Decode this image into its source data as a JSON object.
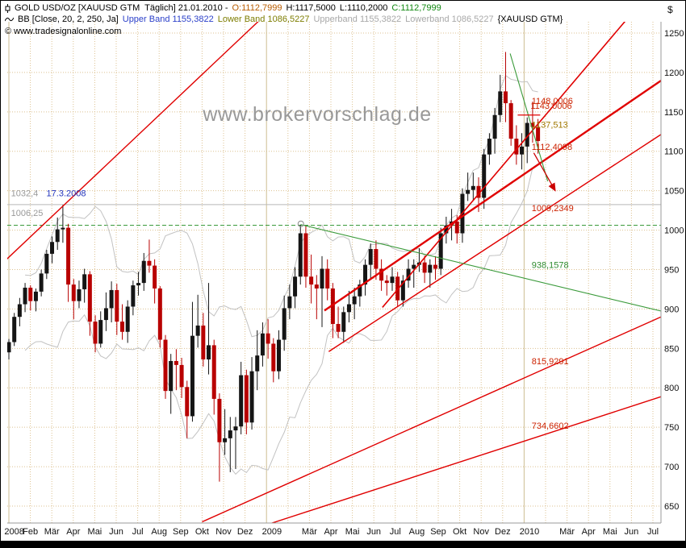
{
  "header": {
    "line1": {
      "symbol": "GOLD USD/OZ [XAUUSD GTM  Täglich] 21.01.2010 -",
      "open": "O:1112,7999",
      "high": "H:1117,5000",
      "low": "L:1110,2000",
      "close": "C:1112,7999"
    },
    "line2": {
      "indicator": "BB [Close, 20, 2, 250, Ja]",
      "upper_band": "Upper Band 1155,3822",
      "lower_band": "Lower Band 1086,5227",
      "upper_band2": "Upperband 1155,3822",
      "lower_band2": "Lowerband 1086,5227",
      "symbol_tag": "{XAUUSD GTM}"
    },
    "copyright": "© www.tradesignalonline.com"
  },
  "watermark": "www.brokervorschlag.de",
  "colors": {
    "up_candle": "#151515",
    "down_candle": "#b80000",
    "trend_red": "#e00000",
    "trend_green": "#3a9a3a",
    "band_gray": "#c2c2c2",
    "grid_tan": "#dcc190"
  },
  "chart_data": {
    "type": "candlestick",
    "symbol": "GOLD USD/OZ [XAUUSD GTM]",
    "timeframe": "Täglich",
    "last_bar": {
      "date": "21.01.2010",
      "open": 1112.7999,
      "high": 1117.5,
      "low": 1110.2,
      "close": 1112.7999
    },
    "bollinger": {
      "period": 20,
      "deviation": 2,
      "length": 250,
      "upper": 1155.3822,
      "lower": 1086.5227
    },
    "y_axis": {
      "unit": "$",
      "ticks": [
        1250,
        1200,
        1150,
        1100,
        1050,
        1000,
        950,
        900,
        850,
        800,
        750,
        700,
        650
      ]
    },
    "x_axis": {
      "labels": [
        {
          "label": "2008",
          "m": 0.25
        },
        {
          "label": "Feb",
          "m": 1
        },
        {
          "label": "Mär",
          "m": 2
        },
        {
          "label": "Apr",
          "m": 3
        },
        {
          "label": "Mai",
          "m": 4
        },
        {
          "label": "Jun",
          "m": 5
        },
        {
          "label": "Jul",
          "m": 6
        },
        {
          "label": "Aug",
          "m": 7
        },
        {
          "label": "Sep",
          "m": 8
        },
        {
          "label": "Okt",
          "m": 9
        },
        {
          "label": "Nov",
          "m": 10
        },
        {
          "label": "Dez",
          "m": 11
        },
        {
          "label": "2009",
          "m": 12.25
        },
        {
          "label": "Mär",
          "m": 14
        },
        {
          "label": "Apr",
          "m": 15
        },
        {
          "label": "Mai",
          "m": 16
        },
        {
          "label": "Jun",
          "m": 17
        },
        {
          "label": "Jul",
          "m": 18
        },
        {
          "label": "Aug",
          "m": 19
        },
        {
          "label": "Sep",
          "m": 20
        },
        {
          "label": "Okt",
          "m": 21
        },
        {
          "label": "Nov",
          "m": 22
        },
        {
          "label": "Dez",
          "m": 23
        },
        {
          "label": "2010",
          "m": 24.25
        },
        {
          "label": "Mär",
          "m": 26
        },
        {
          "label": "Apr",
          "m": 27
        },
        {
          "label": "Mai",
          "m": 28
        },
        {
          "label": "Jun",
          "m": 29
        },
        {
          "label": "Jul",
          "m": 30
        }
      ]
    },
    "months_per_candle": 0.2515,
    "candles": [
      [
        845,
        862,
        836,
        858
      ],
      [
        858,
        895,
        853,
        890
      ],
      [
        890,
        914,
        878,
        906
      ],
      [
        906,
        933,
        896,
        927
      ],
      [
        927,
        930,
        898,
        910
      ],
      [
        910,
        926,
        897,
        922
      ],
      [
        922,
        950,
        916,
        945
      ],
      [
        945,
        975,
        938,
        970
      ],
      [
        970,
        992,
        958,
        985
      ],
      [
        985,
        1016,
        975,
        1001
      ],
      [
        1001,
        1032,
        984,
        1003
      ],
      [
        1003,
        1008,
        909,
        931
      ],
      [
        931,
        938,
        887,
        910
      ],
      [
        910,
        936,
        901,
        925
      ],
      [
        925,
        951,
        908,
        944
      ],
      [
        944,
        948,
        866,
        884
      ],
      [
        884,
        892,
        845,
        856
      ],
      [
        856,
        897,
        851,
        886
      ],
      [
        886,
        921,
        872,
        901
      ],
      [
        901,
        935,
        883,
        924
      ],
      [
        924,
        932,
        867,
        884
      ],
      [
        884,
        906,
        861,
        871
      ],
      [
        871,
        911,
        857,
        903
      ],
      [
        903,
        936,
        892,
        930
      ],
      [
        930,
        947,
        917,
        933
      ],
      [
        933,
        971,
        923,
        961
      ],
      [
        961,
        988,
        946,
        955
      ],
      [
        955,
        963,
        907,
        926
      ],
      [
        926,
        929,
        851,
        861
      ],
      [
        861,
        867,
        786,
        796
      ],
      [
        796,
        843,
        767,
        834
      ],
      [
        834,
        849,
        797,
        829
      ],
      [
        829,
        838,
        787,
        801
      ],
      [
        801,
        809,
        736,
        764
      ],
      [
        764,
        909,
        757,
        866
      ],
      [
        866,
        918,
        851,
        879
      ],
      [
        879,
        895,
        827,
        836
      ],
      [
        836,
        933,
        817,
        854
      ],
      [
        854,
        861,
        766,
        786
      ],
      [
        786,
        793,
        681,
        731
      ],
      [
        731,
        773,
        715,
        736
      ],
      [
        736,
        763,
        693,
        746
      ],
      [
        746,
        763,
        697,
        751
      ],
      [
        751,
        833,
        741,
        816
      ],
      [
        816,
        823,
        741,
        756
      ],
      [
        756,
        839,
        747,
        821
      ],
      [
        821,
        873,
        797,
        841
      ],
      [
        841,
        883,
        827,
        869
      ],
      [
        869,
        887,
        837,
        856
      ],
      [
        856,
        863,
        807,
        821
      ],
      [
        821,
        873,
        811,
        861
      ],
      [
        861,
        917,
        847,
        901
      ],
      [
        901,
        931,
        887,
        916
      ],
      [
        916,
        953,
        901,
        941
      ],
      [
        941,
        1007,
        931,
        996
      ],
      [
        996,
        1006,
        927,
        941
      ],
      [
        941,
        969,
        907,
        931
      ],
      [
        931,
        943,
        887,
        926
      ],
      [
        926,
        967,
        877,
        951
      ],
      [
        951,
        963,
        911,
        926
      ],
      [
        926,
        933,
        863,
        881
      ],
      [
        881,
        903,
        863,
        871
      ],
      [
        871,
        903,
        857,
        896
      ],
      [
        896,
        923,
        883,
        906
      ],
      [
        906,
        927,
        887,
        916
      ],
      [
        916,
        937,
        903,
        931
      ],
      [
        931,
        963,
        917,
        956
      ],
      [
        956,
        983,
        937,
        976
      ],
      [
        976,
        987,
        937,
        951
      ],
      [
        951,
        963,
        923,
        936
      ],
      [
        936,
        943,
        917,
        933
      ],
      [
        933,
        953,
        923,
        941
      ],
      [
        941,
        947,
        903,
        911
      ],
      [
        911,
        943,
        903,
        936
      ],
      [
        936,
        963,
        927,
        951
      ],
      [
        951,
        963,
        927,
        956
      ],
      [
        956,
        977,
        947,
        959
      ],
      [
        959,
        967,
        933,
        946
      ],
      [
        946,
        963,
        927,
        956
      ],
      [
        956,
        967,
        937,
        951
      ],
      [
        951,
        1003,
        943,
        996
      ],
      [
        996,
        1017,
        983,
        1006
      ],
      [
        1006,
        1027,
        987,
        1011
      ],
      [
        1011,
        1019,
        983,
        996
      ],
      [
        996,
        1053,
        984,
        1046
      ],
      [
        1046,
        1073,
        1037,
        1051
      ],
      [
        1051,
        1073,
        1037,
        1056
      ],
      [
        1056,
        1067,
        1023,
        1041
      ],
      [
        1041,
        1103,
        1027,
        1096
      ],
      [
        1096,
        1123,
        1083,
        1116
      ],
      [
        1116,
        1155,
        1097,
        1146
      ],
      [
        1146,
        1197,
        1137,
        1176
      ],
      [
        1176,
        1226,
        1137,
        1161
      ],
      [
        1161,
        1165,
        1107,
        1116
      ],
      [
        1116,
        1133,
        1083,
        1096
      ],
      [
        1096,
        1123,
        1077,
        1106
      ],
      [
        1106,
        1143,
        1085,
        1136
      ],
      [
        1136,
        1163,
        1111,
        1131
      ],
      [
        1131,
        1141,
        1097,
        1113
      ]
    ],
    "trendlines": [
      {
        "name": "resistance-2008",
        "color": "#e00000",
        "width": 1.4,
        "from": [
          -0.3,
          958
        ],
        "to": [
          11.9,
          1272
        ]
      },
      {
        "name": "uptrend-main",
        "color": "#e00000",
        "width": 2.4,
        "from": [
          14.7,
          898
        ],
        "to": [
          31.2,
          1205
        ]
      },
      {
        "name": "uptrend-steep",
        "color": "#e00000",
        "width": 1.6,
        "from": [
          17.4,
          902
        ],
        "to": [
          28.8,
          1268
        ]
      },
      {
        "name": "uptrend-inner",
        "color": "#e00000",
        "width": 1.4,
        "from": [
          14.9,
          846
        ],
        "to": [
          31.2,
          1136
        ]
      },
      {
        "name": "channel-upper",
        "color": "#e00000",
        "width": 1.4,
        "from": [
          9.0,
          630
        ],
        "to": [
          31.2,
          900
        ]
      },
      {
        "name": "channel-lower",
        "color": "#e00000",
        "width": 1.4,
        "from": [
          12.2,
          628
        ],
        "to": [
          31.2,
          796
        ]
      },
      {
        "name": "down-green-long",
        "color": "#3a9a3a",
        "width": 1.1,
        "from": [
          13.6,
          1007
        ],
        "to": [
          31.2,
          892
        ]
      },
      {
        "name": "down-green-short",
        "color": "#3a9a3a",
        "width": 1.1,
        "from": [
          23.35,
          1224
        ],
        "to": [
          25.1,
          1062
        ]
      }
    ],
    "hlines": [
      {
        "price": 1032.4,
        "color": "#b8b8b8",
        "dash": null,
        "width": 1
      },
      {
        "price": 1006.25,
        "color": "#3a9a3a",
        "dash": "5,3",
        "width": 1
      }
    ],
    "segments": [
      {
        "price": 1146,
        "from": 23.7,
        "to": 24.75,
        "color": "#e00000",
        "width": 1.2
      }
    ],
    "marker": {
      "m": 13.6,
      "p": 1008,
      "r": 3.5,
      "color": "#888888"
    },
    "arrow": {
      "from": [
        24.45,
        1098
      ],
      "to": [
        25.45,
        1050
      ],
      "color": "#cc0000"
    },
    "annotations": [
      {
        "text": "1148,0006",
        "m": 24.35,
        "p": 1160,
        "color": "#cc2200"
      },
      {
        "text": "1143,0006",
        "m": 24.3,
        "p": 1154,
        "color": "#cc2200"
      },
      {
        "text": "1137,513",
        "m": 24.35,
        "p": 1130,
        "color": "#a07800"
      },
      {
        "text": "1112,4098",
        "m": 24.35,
        "p": 1102,
        "color": "#cc2200"
      },
      {
        "text": "1009,2349",
        "m": 24.35,
        "p": 1024,
        "color": "#cc2200"
      },
      {
        "text": "938,1578",
        "m": 24.35,
        "p": 952,
        "color": "#2e8b2e"
      },
      {
        "text": "815,9291",
        "m": 24.35,
        "p": 830,
        "color": "#cc2200"
      },
      {
        "text": "734,6602",
        "m": 24.35,
        "p": 748,
        "color": "#cc2200"
      },
      {
        "text": "1032,4",
        "m": 0.1,
        "p": 1043,
        "color": "#999999"
      },
      {
        "text": "17.3.2008",
        "m": 1.75,
        "p": 1043,
        "color": "#2233bb"
      },
      {
        "text": "1006,25",
        "m": 0.1,
        "p": 1018,
        "color": "#999999"
      }
    ]
  }
}
